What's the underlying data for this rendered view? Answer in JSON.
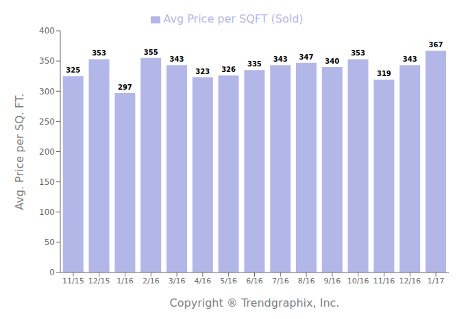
{
  "chart_data": {
    "type": "bar",
    "categories": [
      "11/15",
      "12/15",
      "1/16",
      "2/16",
      "3/16",
      "4/16",
      "5/16",
      "6/16",
      "7/16",
      "8/16",
      "9/16",
      "10/16",
      "11/16",
      "12/16",
      "1/17"
    ],
    "series": [
      {
        "name": "Avg Price per SQFT (Sold)",
        "color": "#b3b7e8",
        "values": [
          325,
          353,
          297,
          355,
          343,
          323,
          326,
          335,
          343,
          347,
          340,
          353,
          319,
          343,
          367
        ]
      }
    ],
    "ylim": [
      0,
      400
    ],
    "yticks": [
      0,
      50,
      100,
      150,
      200,
      250,
      300,
      350,
      400
    ],
    "ylabel": "Avg. Price per SQ. FT.",
    "xlabel": "Copyright ® Trendgraphix, Inc.",
    "grid": false,
    "legend": "top",
    "data_labels": true
  }
}
